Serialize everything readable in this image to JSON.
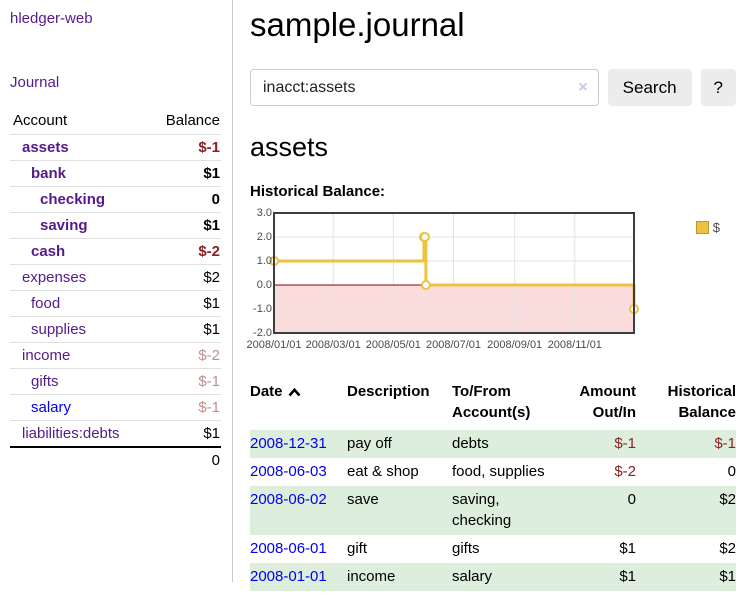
{
  "palette": {
    "link_visited": "#551a8b",
    "link_unvisited": "#0000ee",
    "negative_strong": "#8b2121",
    "negative_soft": "#bf8f8f",
    "table_row_green": "#ddeedd",
    "chart_line": "#edc240",
    "chart_negative_fill": "#fbdcdc",
    "chart_zero_line": "#8b0000"
  },
  "sidebar": {
    "app_title": "hledger-web",
    "nav": [
      {
        "label": "Journal"
      }
    ],
    "accounts_table": {
      "headers": [
        "Account",
        "Balance"
      ],
      "rows": [
        {
          "account": "assets",
          "depth": 1,
          "bold": true,
          "balance": "$-1",
          "balance_tone": "neg-strong",
          "link_tone": "visited"
        },
        {
          "account": "bank",
          "depth": 2,
          "bold": true,
          "balance": "$1",
          "balance_tone": "normal",
          "link_tone": "visited"
        },
        {
          "account": "checking",
          "depth": 3,
          "bold": true,
          "balance": "0",
          "balance_tone": "normal",
          "link_tone": "visited"
        },
        {
          "account": "saving",
          "depth": 3,
          "bold": true,
          "balance": "$1",
          "balance_tone": "normal",
          "link_tone": "visited"
        },
        {
          "account": "cash",
          "depth": 2,
          "bold": true,
          "balance": "$-2",
          "balance_tone": "neg-strong",
          "link_tone": "visited"
        },
        {
          "account": "expenses",
          "depth": 1,
          "bold": false,
          "balance": "$2",
          "balance_tone": "normal",
          "link_tone": "visited"
        },
        {
          "account": "food",
          "depth": 2,
          "bold": false,
          "balance": "$1",
          "balance_tone": "normal",
          "link_tone": "visited"
        },
        {
          "account": "supplies",
          "depth": 2,
          "bold": false,
          "balance": "$1",
          "balance_tone": "normal",
          "link_tone": "visited"
        },
        {
          "account": "income",
          "depth": 1,
          "bold": false,
          "balance": "$-2",
          "balance_tone": "neg-soft",
          "link_tone": "visited"
        },
        {
          "account": "gifts",
          "depth": 2,
          "bold": false,
          "balance": "$-1",
          "balance_tone": "neg-soft",
          "link_tone": "visited"
        },
        {
          "account": "salary",
          "depth": 2,
          "bold": false,
          "balance": "$-1",
          "balance_tone": "neg-soft",
          "link_tone": "unvisited"
        },
        {
          "account": "liabilities:debts",
          "depth": 1,
          "bold": false,
          "balance": "$1",
          "balance_tone": "normal",
          "link_tone": "visited"
        }
      ],
      "total": "0"
    }
  },
  "header": {
    "title": "sample.journal"
  },
  "search": {
    "value": "inacct:assets",
    "clear_label": "×",
    "search_button": "Search",
    "help_button": "?"
  },
  "account_page": {
    "heading": "assets",
    "chart_label": "Historical Balance:"
  },
  "chart_data": {
    "type": "line",
    "step": true,
    "series": [
      {
        "name": "$",
        "color": "#edc240",
        "points": [
          [
            "2008-01-01",
            1
          ],
          [
            "2008-06-01",
            2
          ],
          [
            "2008-06-02",
            2
          ],
          [
            "2008-06-03",
            0
          ],
          [
            "2008-12-31",
            -1
          ]
        ]
      }
    ],
    "xlim": [
      "2008-01-01",
      "2008-12-31"
    ],
    "ylim": [
      -2,
      3
    ],
    "x_ticks": [
      "2008-01-01",
      "2008-03-01",
      "2008-05-01",
      "2008-07-01",
      "2008-09-01",
      "2008-11-01"
    ],
    "y_ticks": [
      3,
      2,
      1,
      0,
      -1,
      -2
    ],
    "grid": true,
    "legend_position": "top-right",
    "negative_region_fill": "#fbdcdc",
    "zero_line_color": "#8b0000"
  },
  "transactions": {
    "columns": [
      "Date",
      "Description",
      "To/From Account(s)",
      "Amount Out/In",
      "Historical Balance"
    ],
    "sort": {
      "column": "Date",
      "direction": "ascending"
    },
    "rows": [
      {
        "date": "2008-12-31",
        "description": "pay off",
        "accounts": "debts",
        "amount": "$-1",
        "amount_negative": true,
        "balance": "$-1",
        "balance_negative": true
      },
      {
        "date": "2008-06-03",
        "description": "eat & shop",
        "accounts": "food, supplies",
        "amount": "$-2",
        "amount_negative": true,
        "balance": "0",
        "balance_negative": false
      },
      {
        "date": "2008-06-02",
        "description": "save",
        "accounts": "saving, checking",
        "amount": "0",
        "amount_negative": false,
        "balance": "$2",
        "balance_negative": false
      },
      {
        "date": "2008-06-01",
        "description": "gift",
        "accounts": "gifts",
        "amount": "$1",
        "amount_negative": false,
        "balance": "$2",
        "balance_negative": false
      },
      {
        "date": "2008-01-01",
        "description": "income",
        "accounts": "salary",
        "amount": "$1",
        "amount_negative": false,
        "balance": "$1",
        "balance_negative": false
      }
    ]
  }
}
